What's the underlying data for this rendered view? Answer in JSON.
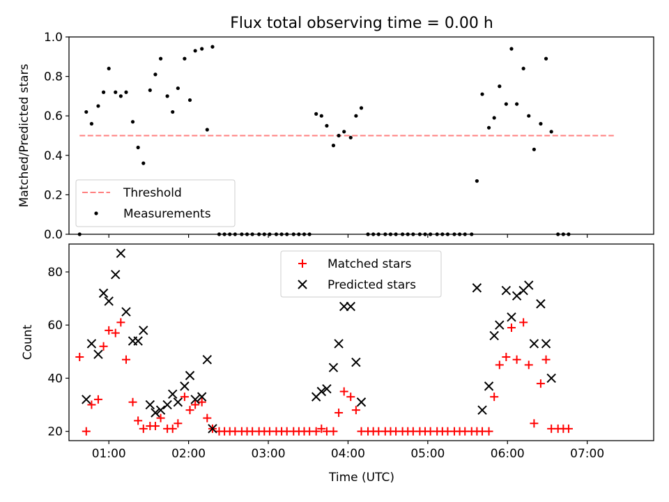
{
  "figure": {
    "title": "Flux total observing time = 0.00 h"
  },
  "chart_data": [
    {
      "type": "scatter",
      "title": "Flux total observing time = 0.00 h",
      "ylabel": "Matched/Predicted stars",
      "xlabel": "",
      "ylim": [
        0,
        1.0
      ],
      "yticks": [
        "0.0",
        "0.2",
        "0.4",
        "0.6",
        "0.8",
        "1.0"
      ],
      "xlim": [
        "00:30",
        "07:50"
      ],
      "grid": false,
      "legend": {
        "position": "lower-left",
        "entries": [
          {
            "label": "Threshold",
            "style": "dashed-line",
            "color": "#ff7f7f"
          },
          {
            "label": "Measurements",
            "style": "dot",
            "color": "#000000"
          }
        ]
      },
      "threshold": {
        "name": "Threshold",
        "value": 0.5,
        "x_start": "00:38",
        "x_end": "07:20"
      },
      "series": [
        {
          "name": "Measurements",
          "color": "#000000",
          "points": [
            [
              "00:38",
              0.0
            ],
            [
              "00:43",
              0.62
            ],
            [
              "00:47",
              0.56
            ],
            [
              "00:52",
              0.65
            ],
            [
              "00:56",
              0.72
            ],
            [
              "01:00",
              0.84
            ],
            [
              "01:05",
              0.72
            ],
            [
              "01:09",
              0.7
            ],
            [
              "01:13",
              0.72
            ],
            [
              "01:18",
              0.57
            ],
            [
              "01:22",
              0.44
            ],
            [
              "01:26",
              0.36
            ],
            [
              "01:31",
              0.73
            ],
            [
              "01:35",
              0.81
            ],
            [
              "01:39",
              0.89
            ],
            [
              "01:44",
              0.7
            ],
            [
              "01:48",
              0.62
            ],
            [
              "01:52",
              0.74
            ],
            [
              "01:57",
              0.89
            ],
            [
              "02:01",
              0.68
            ],
            [
              "02:05",
              0.93
            ],
            [
              "02:10",
              0.94
            ],
            [
              "02:14",
              0.53
            ],
            [
              "02:18",
              0.95
            ],
            [
              "02:23",
              0.0
            ],
            [
              "02:27",
              0.0
            ],
            [
              "02:31",
              0.0
            ],
            [
              "02:35",
              0.0
            ],
            [
              "02:40",
              0.0
            ],
            [
              "02:44",
              0.0
            ],
            [
              "02:48",
              0.0
            ],
            [
              "02:53",
              0.0
            ],
            [
              "02:57",
              0.0
            ],
            [
              "03:01",
              0.0
            ],
            [
              "03:06",
              0.0
            ],
            [
              "03:10",
              0.0
            ],
            [
              "03:14",
              0.0
            ],
            [
              "03:19",
              0.0
            ],
            [
              "03:23",
              0.0
            ],
            [
              "03:27",
              0.0
            ],
            [
              "03:31",
              0.0
            ],
            [
              "03:36",
              0.61
            ],
            [
              "03:40",
              0.6
            ],
            [
              "03:44",
              0.55
            ],
            [
              "03:49",
              0.45
            ],
            [
              "03:53",
              0.5
            ],
            [
              "03:57",
              0.52
            ],
            [
              "04:02",
              0.49
            ],
            [
              "04:06",
              0.6
            ],
            [
              "04:10",
              0.64
            ],
            [
              "04:15",
              0.0
            ],
            [
              "04:19",
              0.0
            ],
            [
              "04:23",
              0.0
            ],
            [
              "04:28",
              0.0
            ],
            [
              "04:32",
              0.0
            ],
            [
              "04:36",
              0.0
            ],
            [
              "04:41",
              0.0
            ],
            [
              "04:45",
              0.0
            ],
            [
              "04:49",
              0.0
            ],
            [
              "04:54",
              0.0
            ],
            [
              "04:58",
              0.0
            ],
            [
              "05:02",
              0.0
            ],
            [
              "05:07",
              0.0
            ],
            [
              "05:11",
              0.0
            ],
            [
              "05:15",
              0.0
            ],
            [
              "05:20",
              0.0
            ],
            [
              "05:24",
              0.0
            ],
            [
              "05:28",
              0.0
            ],
            [
              "05:33",
              0.0
            ],
            [
              "05:37",
              0.27
            ],
            [
              "05:41",
              0.71
            ],
            [
              "05:46",
              0.54
            ],
            [
              "05:50",
              0.59
            ],
            [
              "05:54",
              0.75
            ],
            [
              "05:59",
              0.66
            ],
            [
              "06:03",
              0.94
            ],
            [
              "06:07",
              0.66
            ],
            [
              "06:12",
              0.84
            ],
            [
              "06:16",
              0.6
            ],
            [
              "06:20",
              0.43
            ],
            [
              "06:25",
              0.56
            ],
            [
              "06:29",
              0.89
            ],
            [
              "06:33",
              0.52
            ],
            [
              "06:38",
              0.0
            ],
            [
              "06:42",
              0.0
            ],
            [
              "06:46",
              0.0
            ]
          ]
        }
      ]
    },
    {
      "type": "scatter",
      "title": "",
      "ylabel": "Count",
      "xlabel": "Time (UTC)",
      "ylim": [
        16.5,
        90.5
      ],
      "yticks": [
        "20",
        "40",
        "60",
        "80"
      ],
      "xlim": [
        "00:30",
        "07:50"
      ],
      "xticks": [
        "01:00",
        "02:00",
        "03:00",
        "04:00",
        "05:00",
        "06:00",
        "07:00"
      ],
      "grid": false,
      "legend": {
        "position": "upper-center",
        "entries": [
          {
            "label": "Matched stars",
            "style": "plus",
            "color": "#ff0000"
          },
          {
            "label": "Predicted stars",
            "style": "x",
            "color": "#000000"
          }
        ]
      },
      "series": [
        {
          "name": "Matched stars",
          "color": "#ff0000",
          "marker": "+",
          "points": [
            [
              "00:38",
              48
            ],
            [
              "00:43",
              20
            ],
            [
              "00:47",
              30
            ],
            [
              "00:52",
              32
            ],
            [
              "00:56",
              52
            ],
            [
              "01:00",
              58
            ],
            [
              "01:05",
              57
            ],
            [
              "01:09",
              61
            ],
            [
              "01:13",
              47
            ],
            [
              "01:18",
              31
            ],
            [
              "01:22",
              24
            ],
            [
              "01:26",
              21
            ],
            [
              "01:31",
              22
            ],
            [
              "01:35",
              22
            ],
            [
              "01:39",
              25
            ],
            [
              "01:44",
              21
            ],
            [
              "01:48",
              21
            ],
            [
              "01:52",
              23
            ],
            [
              "01:57",
              33
            ],
            [
              "02:01",
              28
            ],
            [
              "02:05",
              30
            ],
            [
              "02:10",
              31
            ],
            [
              "02:14",
              25
            ],
            [
              "02:18",
              21
            ],
            [
              "02:23",
              20
            ],
            [
              "02:27",
              20
            ],
            [
              "02:31",
              20
            ],
            [
              "02:35",
              20
            ],
            [
              "02:40",
              20
            ],
            [
              "02:44",
              20
            ],
            [
              "02:48",
              20
            ],
            [
              "02:53",
              20
            ],
            [
              "02:57",
              20
            ],
            [
              "03:01",
              20
            ],
            [
              "03:06",
              20
            ],
            [
              "03:10",
              20
            ],
            [
              "03:14",
              20
            ],
            [
              "03:19",
              20
            ],
            [
              "03:23",
              20
            ],
            [
              "03:27",
              20
            ],
            [
              "03:31",
              20
            ],
            [
              "03:36",
              20
            ],
            [
              "03:40",
              21
            ],
            [
              "03:44",
              20
            ],
            [
              "03:49",
              20
            ],
            [
              "03:53",
              27
            ],
            [
              "03:57",
              35
            ],
            [
              "04:02",
              33
            ],
            [
              "04:06",
              28
            ],
            [
              "04:10",
              20
            ],
            [
              "04:15",
              20
            ],
            [
              "04:19",
              20
            ],
            [
              "04:23",
              20
            ],
            [
              "04:28",
              20
            ],
            [
              "04:32",
              20
            ],
            [
              "04:36",
              20
            ],
            [
              "04:41",
              20
            ],
            [
              "04:45",
              20
            ],
            [
              "04:49",
              20
            ],
            [
              "04:54",
              20
            ],
            [
              "04:58",
              20
            ],
            [
              "05:02",
              20
            ],
            [
              "05:07",
              20
            ],
            [
              "05:11",
              20
            ],
            [
              "05:15",
              20
            ],
            [
              "05:20",
              20
            ],
            [
              "05:24",
              20
            ],
            [
              "05:28",
              20
            ],
            [
              "05:33",
              20
            ],
            [
              "05:37",
              20
            ],
            [
              "05:41",
              20
            ],
            [
              "05:46",
              20
            ],
            [
              "05:50",
              33
            ],
            [
              "05:54",
              45
            ],
            [
              "05:59",
              48
            ],
            [
              "06:03",
              59
            ],
            [
              "06:07",
              47
            ],
            [
              "06:12",
              61
            ],
            [
              "06:16",
              45
            ],
            [
              "06:20",
              23
            ],
            [
              "06:25",
              38
            ],
            [
              "06:29",
              47
            ],
            [
              "06:33",
              21
            ],
            [
              "06:38",
              21
            ],
            [
              "06:42",
              21
            ],
            [
              "06:46",
              21
            ]
          ]
        },
        {
          "name": "Predicted stars",
          "color": "#000000",
          "marker": "x",
          "points": [
            [
              "00:43",
              32
            ],
            [
              "00:47",
              53
            ],
            [
              "00:52",
              49
            ],
            [
              "00:56",
              72
            ],
            [
              "01:00",
              69
            ],
            [
              "01:05",
              79
            ],
            [
              "01:09",
              87
            ],
            [
              "01:13",
              65
            ],
            [
              "01:18",
              54
            ],
            [
              "01:22",
              54
            ],
            [
              "01:26",
              58
            ],
            [
              "01:31",
              30
            ],
            [
              "01:35",
              27
            ],
            [
              "01:39",
              28
            ],
            [
              "01:44",
              30
            ],
            [
              "01:48",
              34
            ],
            [
              "01:52",
              31
            ],
            [
              "01:57",
              37
            ],
            [
              "02:01",
              41
            ],
            [
              "02:05",
              32
            ],
            [
              "02:10",
              33
            ],
            [
              "02:14",
              47
            ],
            [
              "02:18",
              21
            ],
            [
              "03:36",
              33
            ],
            [
              "03:40",
              35
            ],
            [
              "03:44",
              36
            ],
            [
              "03:49",
              44
            ],
            [
              "03:53",
              53
            ],
            [
              "03:57",
              67
            ],
            [
              "04:02",
              67
            ],
            [
              "04:06",
              46
            ],
            [
              "04:10",
              31
            ],
            [
              "05:37",
              74
            ],
            [
              "05:41",
              28
            ],
            [
              "05:46",
              37
            ],
            [
              "05:50",
              56
            ],
            [
              "05:54",
              60
            ],
            [
              "05:59",
              73
            ],
            [
              "06:03",
              63
            ],
            [
              "06:07",
              71
            ],
            [
              "06:12",
              73
            ],
            [
              "06:16",
              75
            ],
            [
              "06:20",
              53
            ],
            [
              "06:25",
              68
            ],
            [
              "06:29",
              53
            ],
            [
              "06:33",
              40
            ]
          ]
        }
      ]
    }
  ]
}
